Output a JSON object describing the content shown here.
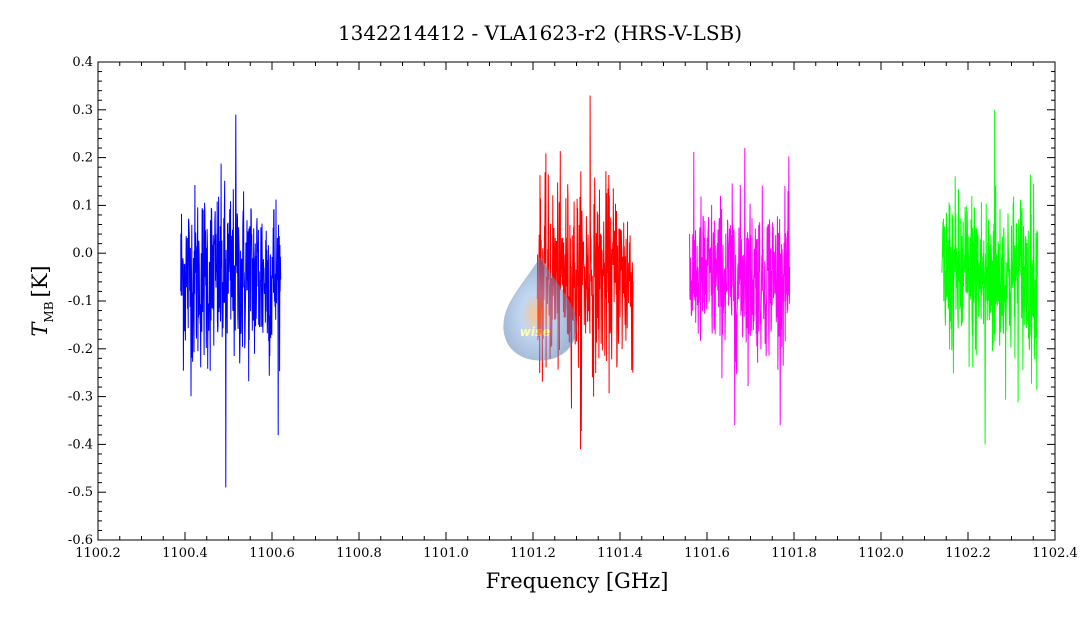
{
  "chart_data": {
    "type": "line",
    "title": "1342214412 - VLA1623-r2 (HRS-V-LSB)",
    "xlabel": "Frequency [GHz]",
    "ylabel_main": "T",
    "ylabel_sub": "MB",
    "ylabel_unit": "[K]",
    "xlim": [
      1100.2,
      1102.4
    ],
    "ylim": [
      -0.6,
      0.4
    ],
    "xticks": [
      1100.2,
      1100.4,
      1100.6,
      1100.8,
      1101.0,
      1101.2,
      1101.4,
      1101.6,
      1101.8,
      1102.0,
      1102.2,
      1102.4
    ],
    "xtick_labels": [
      "1100.2",
      "1100.4",
      "1100.6",
      "1100.8",
      "1101.0",
      "1101.2",
      "1101.4",
      "1101.6",
      "1101.8",
      "1102.0",
      "1102.2",
      "1102.4"
    ],
    "yticks": [
      -0.6,
      -0.5,
      -0.4,
      -0.3,
      -0.2,
      -0.1,
      0.0,
      0.1,
      0.2,
      0.3,
      0.4
    ],
    "ytick_labels": [
      "-0.6",
      "-0.5",
      "-0.4",
      "-0.3",
      "-0.2",
      "-0.1",
      "0.0",
      "0.1",
      "0.2",
      "0.3",
      "0.4"
    ],
    "grid": false,
    "series": [
      {
        "color": "#0000ff",
        "x_range": [
          1100.39,
          1100.62
        ],
        "baseline": -0.05,
        "sigma": 0.095,
        "max": 0.29,
        "min": -0.49
      },
      {
        "color": "#ff0000",
        "x_range": [
          1101.21,
          1101.43
        ],
        "baseline": -0.05,
        "sigma": 0.095,
        "max": 0.33,
        "min": -0.41
      },
      {
        "color": "#ff00ff",
        "x_range": [
          1101.56,
          1101.79
        ],
        "baseline": -0.05,
        "sigma": 0.08,
        "max": 0.22,
        "min": -0.36
      },
      {
        "color": "#00ff00",
        "x_range": [
          1102.14,
          1102.36
        ],
        "baseline": -0.05,
        "sigma": 0.09,
        "max": 0.3,
        "min": -0.4
      }
    ]
  },
  "watermark": {
    "text": "wise"
  }
}
